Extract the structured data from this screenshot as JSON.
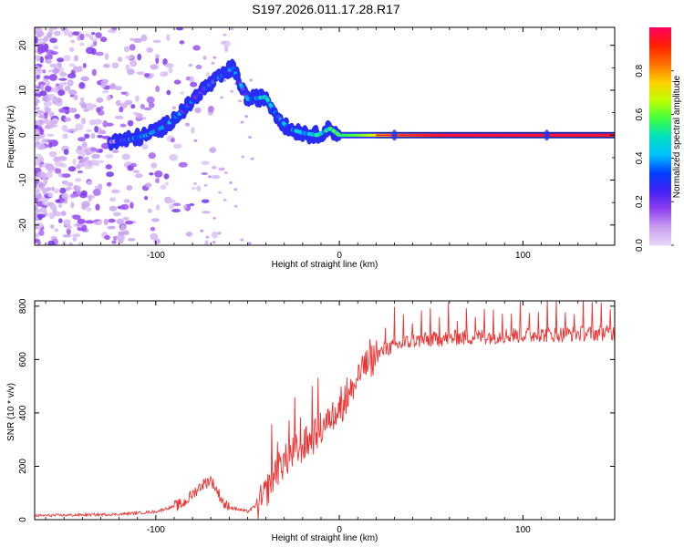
{
  "title": "S197.2026.011.17.28.R17",
  "chart_data": [
    {
      "type": "heatmap",
      "title": "S197.2026.011.17.28.R17",
      "xlabel": "Height of straight line (km)",
      "ylabel": "Frequency (Hz)",
      "xlim": [
        -166,
        150
      ],
      "ylim": [
        -24.5,
        24
      ],
      "xticks": [
        -100,
        0,
        100
      ],
      "yticks": [
        -20,
        -10,
        0,
        10,
        20
      ],
      "colorbar": {
        "label": "Normalized spectral amplitude",
        "range": [
          0,
          1
        ],
        "ticks": [
          0.0,
          0.2,
          0.4,
          0.6,
          0.8
        ],
        "colors": [
          "#e8d8f8",
          "#c8a0f0",
          "#9040f0",
          "#4020f0",
          "#0040ff",
          "#00c0ff",
          "#00e0c0",
          "#40ff40",
          "#c0ff00",
          "#ffd000",
          "#ff7000",
          "#ff2000",
          "#ff0060"
        ]
      },
      "ridge": [
        {
          "x": -125,
          "y": -1.5,
          "amp": 0.15
        },
        {
          "x": -115,
          "y": -1.0,
          "amp": 0.3
        },
        {
          "x": -105,
          "y": 0.0,
          "amp": 0.35
        },
        {
          "x": -95,
          "y": 2.0,
          "amp": 0.35
        },
        {
          "x": -85,
          "y": 5.5,
          "amp": 0.3
        },
        {
          "x": -75,
          "y": 10.0,
          "amp": 0.3
        },
        {
          "x": -65,
          "y": 13.0,
          "amp": 0.3
        },
        {
          "x": -58,
          "y": 15.0,
          "amp": 0.3
        },
        {
          "x": -50,
          "y": 8.0,
          "amp": 0.3
        },
        {
          "x": -40,
          "y": 8.5,
          "amp": 0.45
        },
        {
          "x": -35,
          "y": 5.0,
          "amp": 0.3
        },
        {
          "x": -28,
          "y": 1.5,
          "amp": 0.35
        },
        {
          "x": -20,
          "y": 0.5,
          "amp": 0.4
        },
        {
          "x": -12,
          "y": 0.0,
          "amp": 0.45
        },
        {
          "x": -5,
          "y": 1.5,
          "amp": 0.5
        },
        {
          "x": 0,
          "y": 0.0,
          "amp": 0.55
        },
        {
          "x": 10,
          "y": 0.0,
          "amp": 0.6
        },
        {
          "x": 30,
          "y": 0.0,
          "amp": 0.8
        },
        {
          "x": 60,
          "y": 0.0,
          "amp": 0.95
        },
        {
          "x": 100,
          "y": 0.0,
          "amp": 0.95
        },
        {
          "x": 150,
          "y": 0.0,
          "amp": 0.92
        }
      ]
    },
    {
      "type": "line",
      "xlabel": "Height of straight line (km)",
      "ylabel": "SNR (10 * v/v)",
      "xlim": [
        -166,
        150
      ],
      "ylim": [
        0,
        820
      ],
      "xticks": [
        -100,
        0,
        100
      ],
      "yticks": [
        0,
        200,
        400,
        600,
        800
      ],
      "color": "#ee3333",
      "trend": [
        {
          "x": -166,
          "y": 15
        },
        {
          "x": -120,
          "y": 20
        },
        {
          "x": -100,
          "y": 30
        },
        {
          "x": -85,
          "y": 60
        },
        {
          "x": -75,
          "y": 130
        },
        {
          "x": -70,
          "y": 150
        },
        {
          "x": -62,
          "y": 50
        },
        {
          "x": -50,
          "y": 30
        },
        {
          "x": -42,
          "y": 70
        },
        {
          "x": -35,
          "y": 180
        },
        {
          "x": -25,
          "y": 250
        },
        {
          "x": -15,
          "y": 300
        },
        {
          "x": -5,
          "y": 380
        },
        {
          "x": 5,
          "y": 460
        },
        {
          "x": 15,
          "y": 580
        },
        {
          "x": 25,
          "y": 640
        },
        {
          "x": 40,
          "y": 670
        },
        {
          "x": 60,
          "y": 680
        },
        {
          "x": 90,
          "y": 690
        },
        {
          "x": 120,
          "y": 695
        },
        {
          "x": 150,
          "y": 700
        }
      ]
    }
  ]
}
